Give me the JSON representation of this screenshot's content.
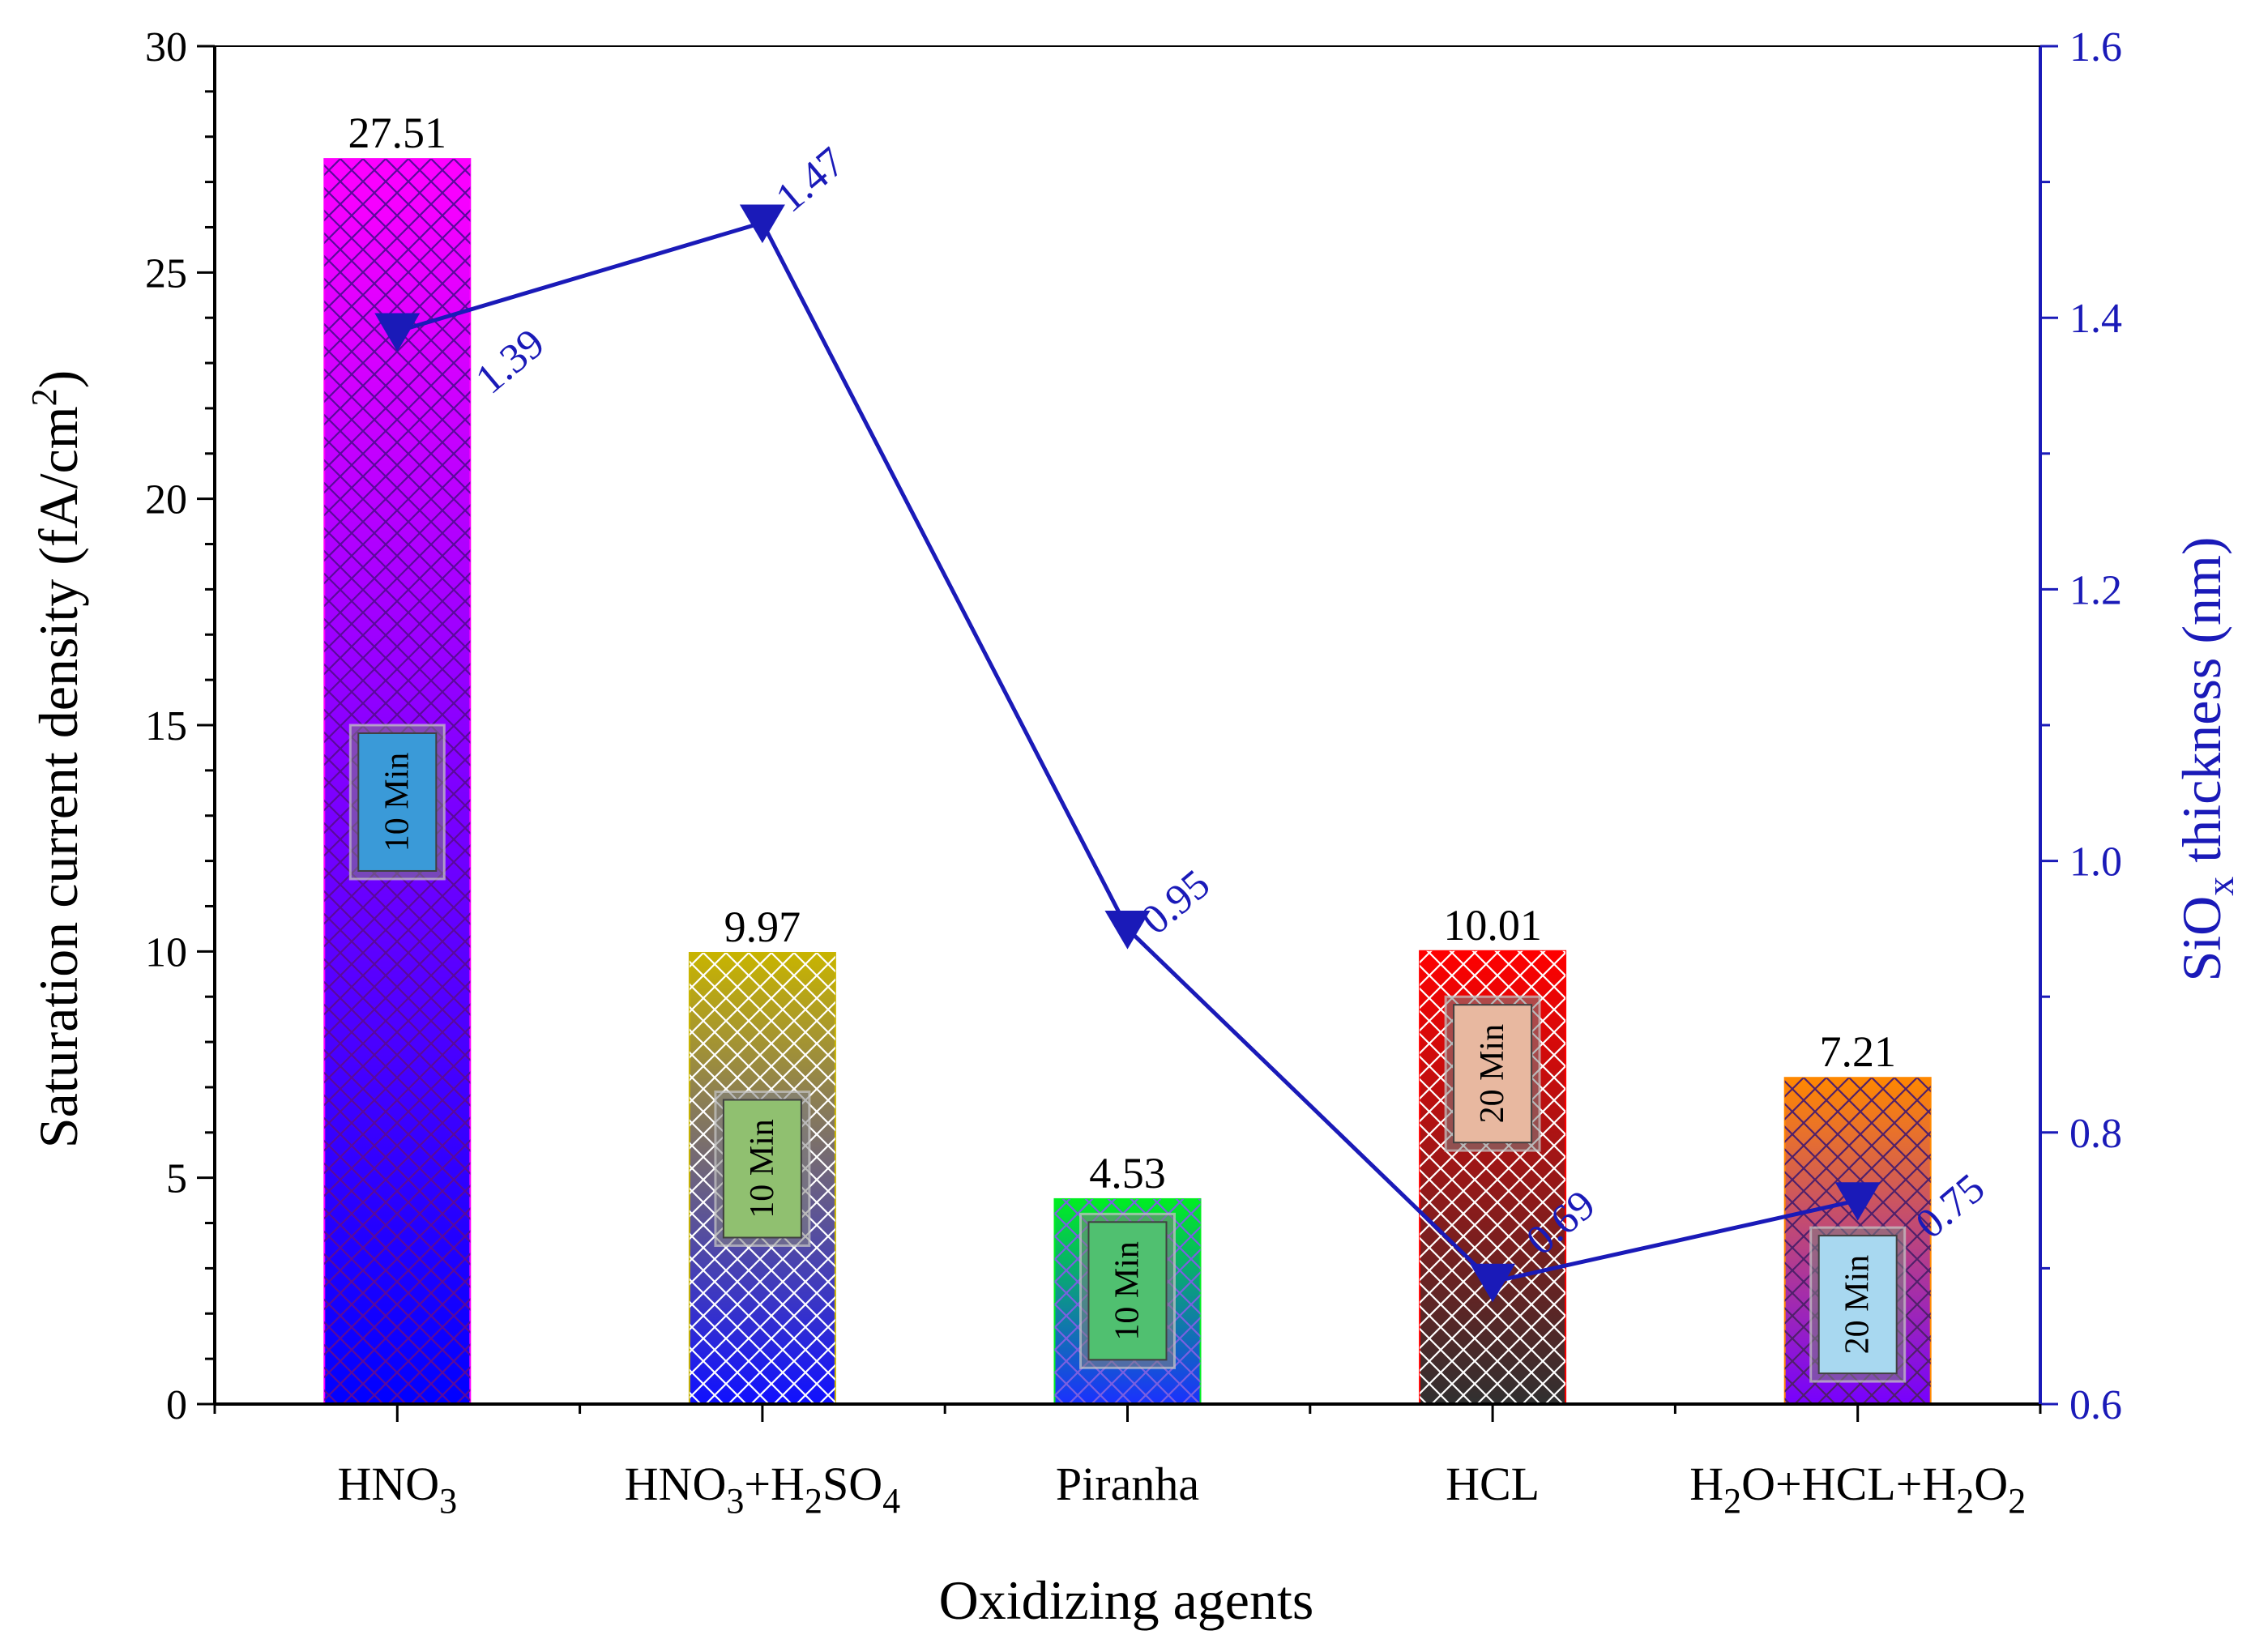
{
  "chart_data": {
    "type": "bar",
    "xlabel": "Oxidizing agents",
    "ylabel_left": "Saturation current density (fA/cm²)",
    "ylabel_left_base": "Saturation current density (fA/cm",
    "ylabel_left_sup": "2",
    "ylabel_left_tail": ")",
    "ylabel_right": "SiOx thickness (nm)",
    "ylabel_right_base": "SiO",
    "ylabel_right_sub": "x",
    "ylabel_right_tail": " thickness (nm)",
    "ylim_left": [
      0,
      30
    ],
    "ylim_right": [
      0.6,
      1.6
    ],
    "yticks_left": [
      "0",
      "5",
      "10",
      "15",
      "20",
      "25",
      "30"
    ],
    "yticks_right": [
      "0.6",
      "0.8",
      "1.0",
      "1.2",
      "1.4",
      "1.6"
    ],
    "categories": [
      {
        "name": "HNO3",
        "parts": [
          [
            "HNO",
            ""
          ],
          [
            "3",
            "sub"
          ]
        ]
      },
      {
        "name": "HNO3+H2SO4",
        "parts": [
          [
            "HNO",
            ""
          ],
          [
            "3",
            "sub"
          ],
          [
            "+H",
            ""
          ],
          [
            "2",
            "sub"
          ],
          [
            "SO",
            ""
          ],
          [
            "4",
            "sub"
          ]
        ]
      },
      {
        "name": "Piranha",
        "parts": [
          [
            "Piranha",
            ""
          ]
        ]
      },
      {
        "name": "HCL",
        "parts": [
          [
            "HCL",
            ""
          ]
        ]
      },
      {
        "name": "H2O+HCL+H2O2",
        "parts": [
          [
            "H",
            ""
          ],
          [
            "2",
            "sub"
          ],
          [
            "O+HCL+H",
            ""
          ],
          [
            "2",
            "sub"
          ],
          [
            "O",
            ""
          ],
          [
            "2",
            "sub"
          ]
        ]
      }
    ],
    "series": [
      {
        "name": "Saturation current density",
        "axis": "left",
        "type": "bar",
        "values": [
          27.51,
          9.97,
          4.53,
          10.01,
          7.21
        ],
        "labels": [
          "27.51",
          "9.97",
          "4.53",
          "10.01",
          "7.21"
        ],
        "colors_top": [
          "#ff00ff",
          "#c8b400",
          "#00ee22",
          "#ff0000",
          "#ff8800"
        ],
        "colors_bottom": [
          "#0000ff",
          "#1010ff",
          "#1a30ff",
          "#303030",
          "#7700ff"
        ],
        "hatch_colors": [
          "#5a0a9a",
          "#ffffff",
          "#7a60e0",
          "#ffffff",
          "#50206a"
        ]
      },
      {
        "name": "SiOx thickness",
        "axis": "right",
        "type": "line",
        "marker": "down-triangle",
        "color": "#1a1ab8",
        "values": [
          1.39,
          1.47,
          0.95,
          0.69,
          0.75
        ],
        "labels": [
          "1.39",
          "1.47",
          "0.95",
          "0.69",
          "0.75"
        ]
      }
    ],
    "time_tags": [
      "10 Min",
      "10 Min",
      "10 Min",
      "20 Min",
      "20 Min"
    ]
  }
}
